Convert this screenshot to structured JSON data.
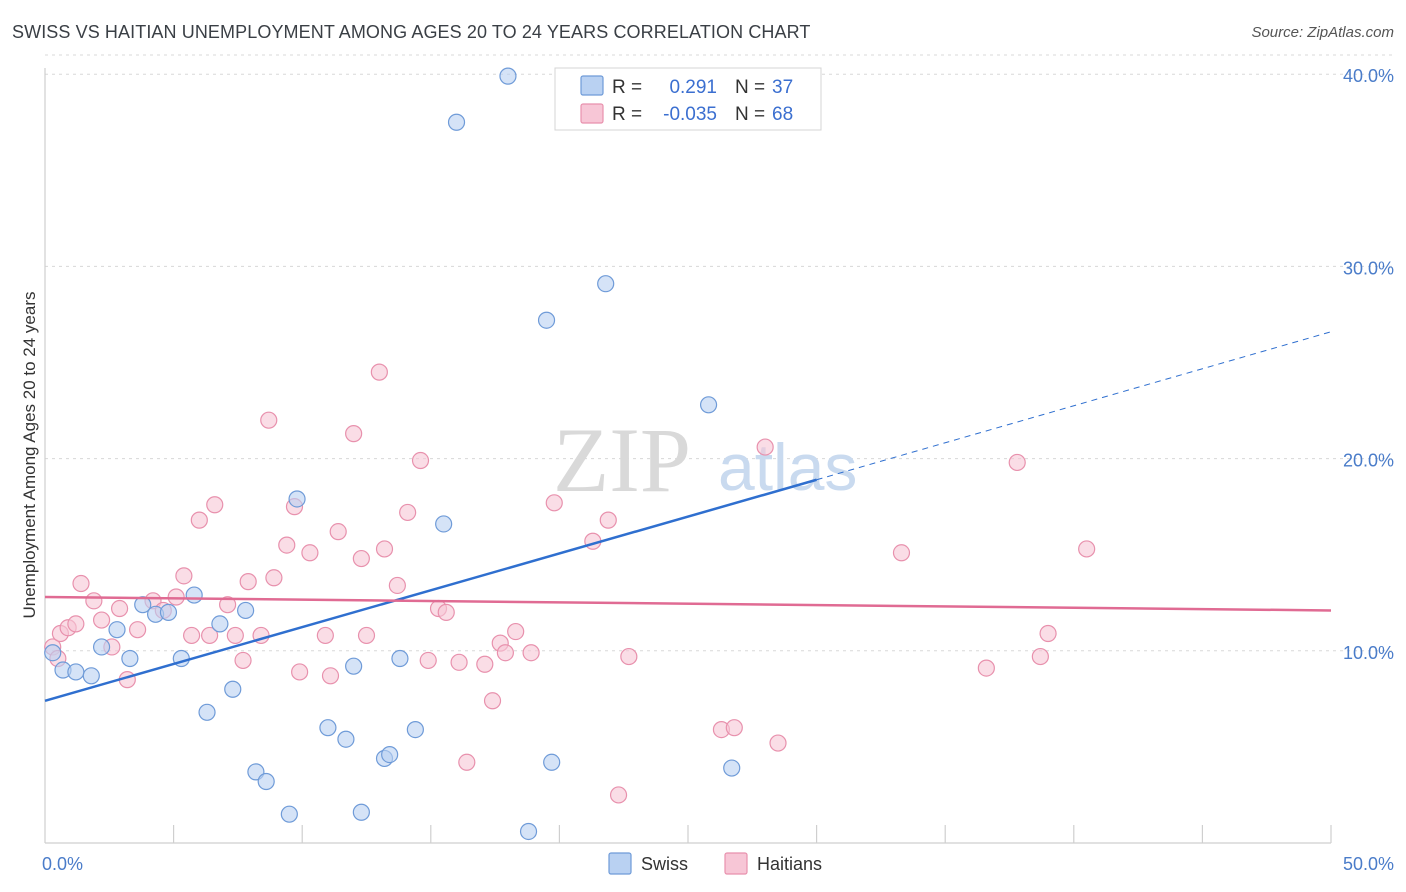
{
  "header": {
    "title": "SWISS VS HAITIAN UNEMPLOYMENT AMONG AGES 20 TO 24 YEARS CORRELATION CHART",
    "source": "Source: ZipAtlas.com"
  },
  "watermark": {
    "zip": "ZIP",
    "atlas": "atlas"
  },
  "legend": {
    "swiss": {
      "r_label": "R =",
      "r_value": "0.291",
      "n_label": "N =",
      "n_value": "37"
    },
    "haitians": {
      "r_label": "R =",
      "r_value": "-0.035",
      "n_label": "N =",
      "n_value": "68"
    }
  },
  "bottom_legend": {
    "swiss": "Swiss",
    "haitians": "Haitians"
  },
  "colors": {
    "swiss_fill": "#b9d1f2",
    "swiss_stroke": "#6f9bd8",
    "swiss_line": "#2f6fcf",
    "haitians_fill": "#f7c6d6",
    "haitians_stroke": "#e891ad",
    "haitians_line": "#e06b93",
    "axis_label": "#4a7cc9",
    "grid": "#d8d8d8"
  },
  "chart_data": {
    "type": "scatter",
    "title": "SWISS VS HAITIAN UNEMPLOYMENT AMONG AGES 20 TO 24 YEARS CORRELATION CHART",
    "xlabel": "",
    "ylabel": "Unemployment Among Ages 20 to 24 years",
    "xlim": [
      0,
      50
    ],
    "ylim": [
      0,
      41
    ],
    "x_tick_labels": [
      "0.0%",
      "50.0%"
    ],
    "y_ticks": [
      10,
      20,
      30,
      40
    ],
    "y_tick_labels": [
      "10.0%",
      "20.0%",
      "30.0%",
      "40.0%"
    ],
    "grid": true,
    "legend_placement": "top-center",
    "series": [
      {
        "name": "Swiss",
        "r": 0.291,
        "n": 37,
        "trend": {
          "x_start": 0,
          "y_start": 7.4,
          "x_end": 30,
          "y_end": 18.9,
          "x_dashed_end": 50,
          "y_dashed_end": 26.6
        },
        "points": [
          [
            0.3,
            9.9
          ],
          [
            0.7,
            9.0
          ],
          [
            1.2,
            8.9
          ],
          [
            1.8,
            8.7
          ],
          [
            2.2,
            10.2
          ],
          [
            2.8,
            11.1
          ],
          [
            3.3,
            9.6
          ],
          [
            3.8,
            12.4
          ],
          [
            4.3,
            11.9
          ],
          [
            4.8,
            12.0
          ],
          [
            5.3,
            9.6
          ],
          [
            5.8,
            12.9
          ],
          [
            6.3,
            6.8
          ],
          [
            6.8,
            11.4
          ],
          [
            7.3,
            8.0
          ],
          [
            7.8,
            12.1
          ],
          [
            8.2,
            3.7
          ],
          [
            8.6,
            3.2
          ],
          [
            9.5,
            1.5
          ],
          [
            9.8,
            17.9
          ],
          [
            11.0,
            6.0
          ],
          [
            11.7,
            5.4
          ],
          [
            12.0,
            9.2
          ],
          [
            12.3,
            1.6
          ],
          [
            13.2,
            4.4
          ],
          [
            13.4,
            4.6
          ],
          [
            13.8,
            9.6
          ],
          [
            14.4,
            5.9
          ],
          [
            15.5,
            16.6
          ],
          [
            16.0,
            37.5
          ],
          [
            18.0,
            39.9
          ],
          [
            18.8,
            0.6
          ],
          [
            19.5,
            27.2
          ],
          [
            19.7,
            4.2
          ],
          [
            21.8,
            29.1
          ],
          [
            25.8,
            22.8
          ],
          [
            26.7,
            3.9
          ]
        ]
      },
      {
        "name": "Haitians",
        "r": -0.035,
        "n": 68,
        "trend": {
          "x_start": 0,
          "y_start": 12.8,
          "x_end": 50,
          "y_end": 12.1
        },
        "points": [
          [
            0.3,
            10.2
          ],
          [
            0.6,
            10.9
          ],
          [
            0.9,
            11.2
          ],
          [
            1.2,
            11.4
          ],
          [
            1.4,
            13.5
          ],
          [
            1.9,
            12.6
          ],
          [
            2.2,
            11.6
          ],
          [
            2.6,
            10.2
          ],
          [
            2.9,
            12.2
          ],
          [
            3.2,
            8.5
          ],
          [
            3.6,
            11.1
          ],
          [
            4.2,
            12.6
          ],
          [
            4.6,
            12.1
          ],
          [
            5.1,
            12.8
          ],
          [
            5.4,
            13.9
          ],
          [
            5.7,
            10.8
          ],
          [
            6.0,
            16.8
          ],
          [
            6.4,
            10.8
          ],
          [
            6.6,
            17.6
          ],
          [
            7.1,
            12.4
          ],
          [
            7.4,
            10.8
          ],
          [
            7.7,
            9.5
          ],
          [
            7.9,
            13.6
          ],
          [
            8.4,
            10.8
          ],
          [
            8.7,
            22.0
          ],
          [
            8.9,
            13.8
          ],
          [
            9.4,
            15.5
          ],
          [
            9.7,
            17.5
          ],
          [
            9.9,
            8.9
          ],
          [
            10.3,
            15.1
          ],
          [
            10.9,
            10.8
          ],
          [
            11.1,
            8.7
          ],
          [
            11.4,
            16.2
          ],
          [
            12.0,
            21.3
          ],
          [
            12.3,
            14.8
          ],
          [
            12.5,
            10.8
          ],
          [
            13.0,
            24.5
          ],
          [
            13.2,
            15.3
          ],
          [
            13.7,
            13.4
          ],
          [
            14.1,
            17.2
          ],
          [
            14.6,
            19.9
          ],
          [
            14.9,
            9.5
          ],
          [
            15.3,
            12.2
          ],
          [
            15.6,
            12.0
          ],
          [
            16.1,
            9.4
          ],
          [
            16.4,
            4.2
          ],
          [
            17.1,
            9.3
          ],
          [
            17.4,
            7.4
          ],
          [
            17.7,
            10.4
          ],
          [
            17.9,
            9.9
          ],
          [
            18.3,
            11.0
          ],
          [
            18.9,
            9.9
          ],
          [
            19.8,
            17.7
          ],
          [
            21.3,
            15.7
          ],
          [
            21.9,
            16.8
          ],
          [
            22.3,
            2.5
          ],
          [
            22.7,
            9.7
          ],
          [
            26.3,
            5.9
          ],
          [
            26.8,
            6.0
          ],
          [
            28.0,
            20.6
          ],
          [
            28.5,
            5.2
          ],
          [
            33.3,
            15.1
          ],
          [
            36.6,
            9.1
          ],
          [
            37.8,
            19.8
          ],
          [
            38.7,
            9.7
          ],
          [
            39.0,
            10.9
          ],
          [
            40.5,
            15.3
          ],
          [
            0.5,
            9.6
          ]
        ]
      }
    ]
  }
}
